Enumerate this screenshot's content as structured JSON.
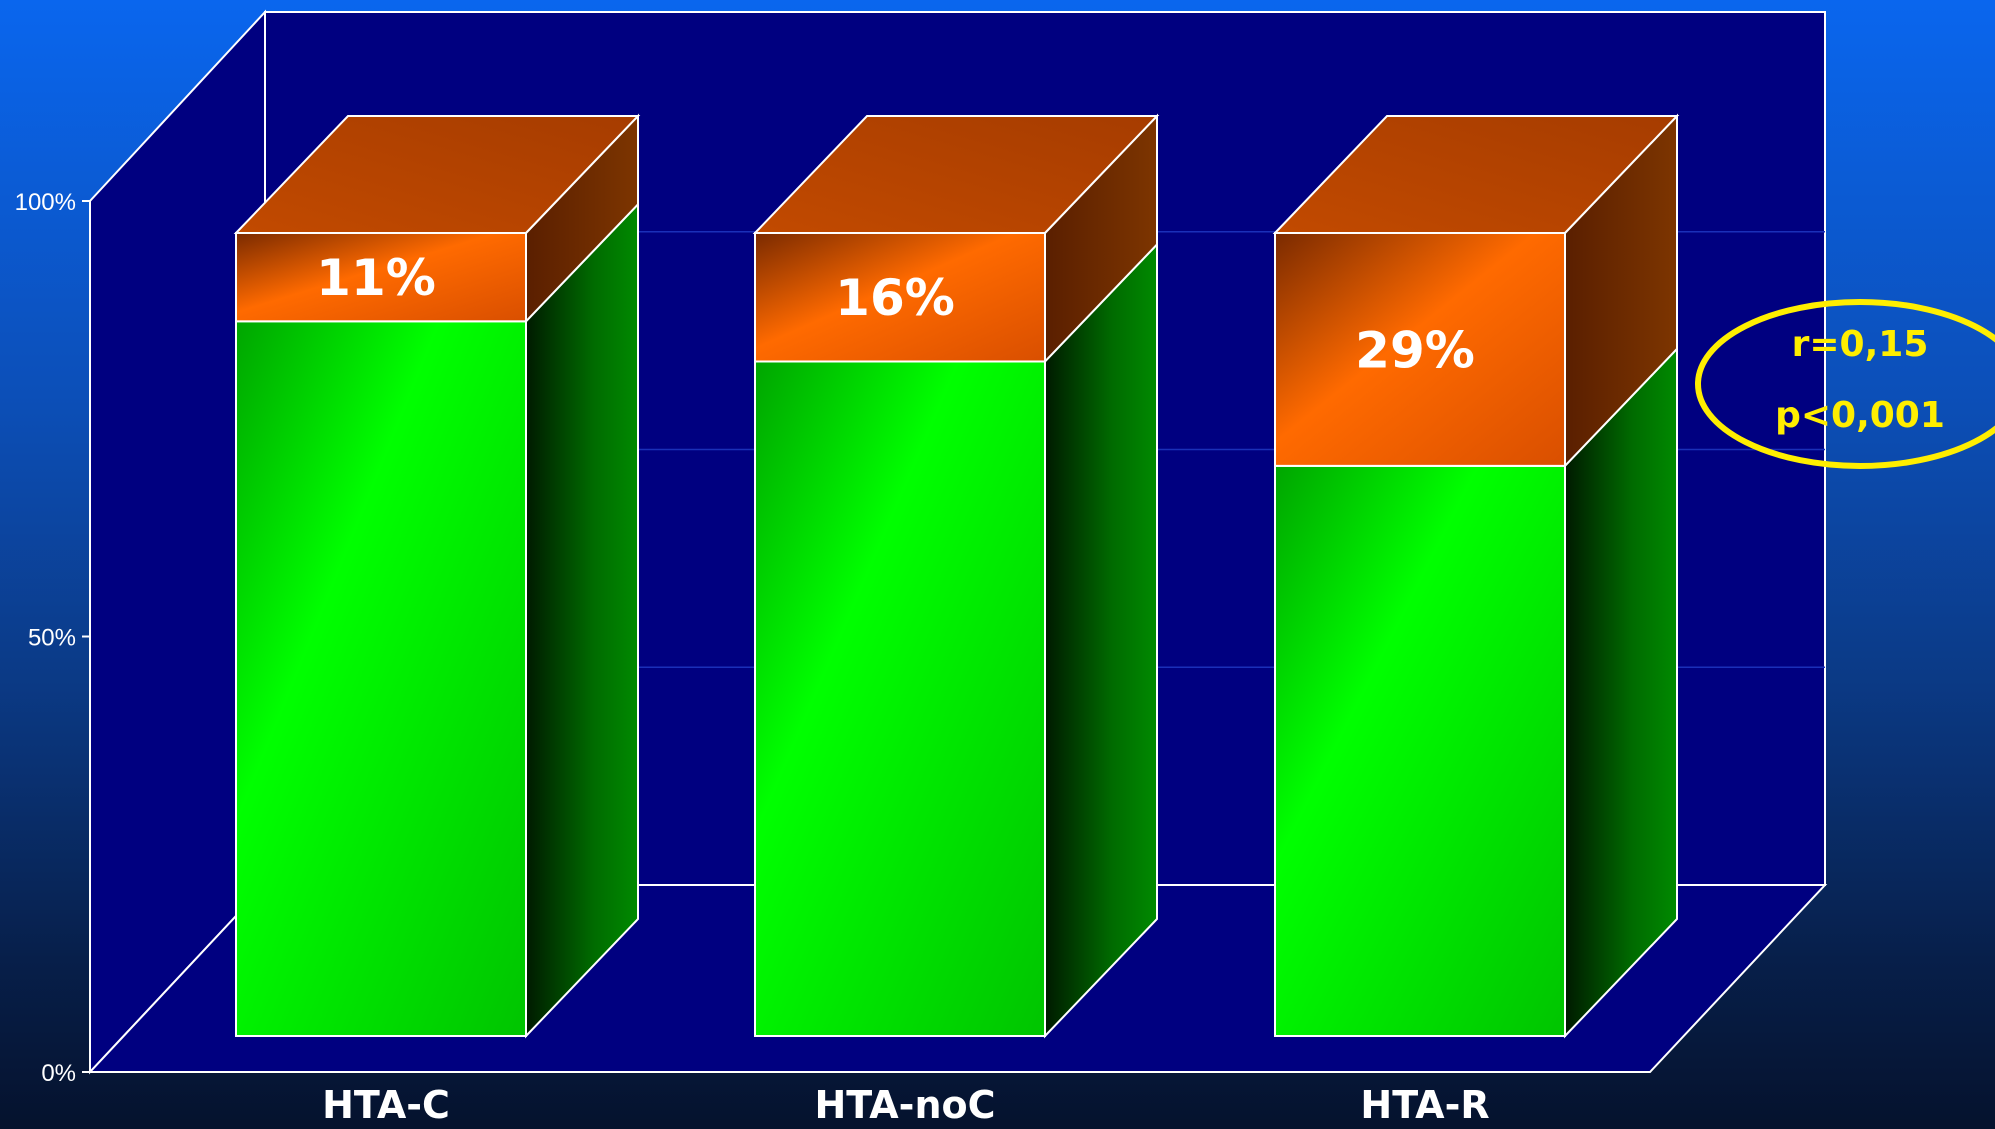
{
  "chart_data": {
    "type": "bar",
    "stacked": true,
    "three_d": true,
    "categories": [
      "HTA-C",
      "HTA-noC",
      "HTA-R"
    ],
    "series": [
      {
        "values": [
          89,
          84,
          71
        ],
        "color": "#00ee00"
      },
      {
        "values": [
          11,
          16,
          29
        ],
        "color": "#ff6600"
      }
    ],
    "data_labels": [
      "11%",
      "16%",
      "29%"
    ],
    "y_ticks": [
      {
        "value": 0,
        "label": "0%"
      },
      {
        "value": 50,
        "label": "50%"
      },
      {
        "value": 100,
        "label": "100%"
      }
    ],
    "ylim": [
      0,
      100
    ],
    "grid": true,
    "background_color": "#000080",
    "annotation": {
      "lines": [
        "r=0,15",
        "p<0,001"
      ],
      "color": "#ffee00",
      "position": "right"
    },
    "title": "",
    "xlabel": "",
    "ylabel": ""
  }
}
